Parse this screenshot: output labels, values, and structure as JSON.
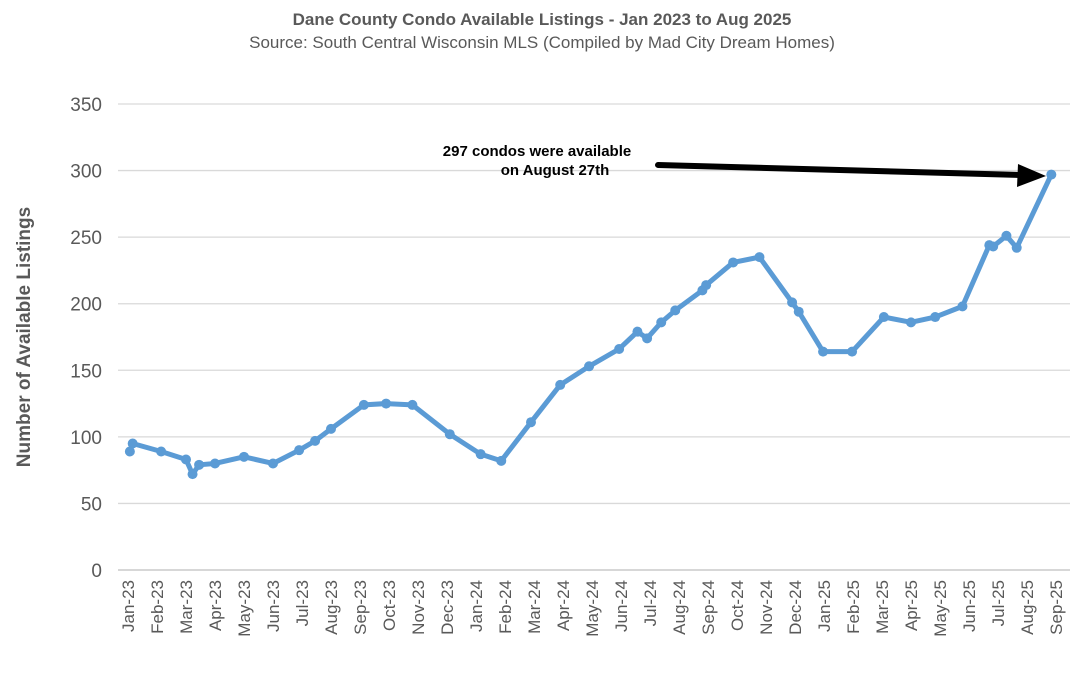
{
  "chart_data": {
    "type": "line",
    "title": "Dane County Condo Available Listings - Jan 2023 to Aug 2025",
    "subtitle": "Source: South Central Wisconsin MLS (Compiled by Mad City Dream Homes)",
    "xlabel": "",
    "ylabel": "Number of Available Listings",
    "ylim": [
      0,
      350
    ],
    "yticks": [
      0,
      50,
      100,
      150,
      200,
      250,
      300,
      350
    ],
    "xtick_labels": [
      "Jan-23",
      "Feb-23",
      "Mar-23",
      "Apr-23",
      "May-23",
      "Jun-23",
      "Jul-23",
      "Aug-23",
      "Sep-23",
      "Oct-23",
      "Nov-23",
      "Dec-23",
      "Jan-24",
      "Feb-24",
      "Mar-24",
      "Apr-24",
      "May-24",
      "Jun-24",
      "Jul-24",
      "Aug-24",
      "Sep-24",
      "Oct-24",
      "Nov-24",
      "Dec-24",
      "Jan-25",
      "Feb-25",
      "Mar-25",
      "Apr-25",
      "May-25",
      "Jun-25",
      "Jul-25",
      "Aug-25",
      "Sep-25"
    ],
    "grid": true,
    "line_color": "#5B9BD5",
    "annotation": {
      "line1": "297 condos were available",
      "line2": "on August 27th"
    },
    "x": [
      "2023-01-03",
      "2023-01-06",
      "2023-02-05",
      "2023-03-01",
      "2023-03-08",
      "2023-03-15",
      "2023-04-01",
      "2023-05-01",
      "2023-06-01",
      "2023-06-28",
      "2023-07-15",
      "2023-08-01",
      "2023-09-05",
      "2023-09-28",
      "2023-10-26",
      "2023-12-04",
      "2024-01-06",
      "2024-01-28",
      "2024-02-27",
      "2024-03-29",
      "2024-04-28",
      "2024-05-30",
      "2024-06-18",
      "2024-06-28",
      "2024-07-13",
      "2024-07-28",
      "2024-08-26",
      "2024-08-30",
      "2024-09-27",
      "2024-10-25",
      "2024-11-28",
      "2024-12-05",
      "2024-12-31",
      "2025-01-31",
      "2025-03-03",
      "2025-04-01",
      "2025-04-26",
      "2025-05-25",
      "2025-06-22",
      "2025-06-26",
      "2025-07-10",
      "2025-07-21",
      "2025-08-27"
    ],
    "y": [
      89,
      95,
      89,
      83,
      72,
      79,
      80,
      85,
      80,
      90,
      97,
      106,
      124,
      125,
      124,
      102,
      87,
      82,
      111,
      139,
      153,
      166,
      179,
      174,
      186,
      195,
      210,
      214,
      231,
      235,
      201,
      194,
      164,
      164,
      190,
      186,
      190,
      198,
      244,
      243,
      251,
      242,
      297
    ]
  }
}
